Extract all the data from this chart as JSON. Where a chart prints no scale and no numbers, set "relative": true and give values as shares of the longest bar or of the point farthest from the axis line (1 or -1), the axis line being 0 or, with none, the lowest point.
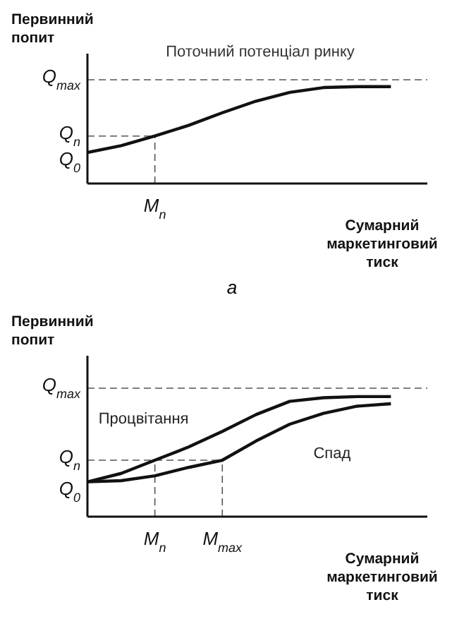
{
  "chart_data": [
    {
      "type": "line",
      "relative": true,
      "xlabel": "Сумарний маркетинговий тиск",
      "ylabel": "Первинний попит",
      "categories": [
        null,
        null,
        null,
        null,
        null,
        null,
        null,
        null,
        null,
        null
      ],
      "annotations": [
        "Поточний потенціал ринку",
        "а",
        "Q$_{0}$",
        {
          "text": "M$_{n}$",
          "y": 0.49
        }
      ],
      "series": [
        {
          "color": "#111111",
          "values": [
            0.32,
            0.39,
            0.49,
            0.6,
            0.73,
            0.85,
            0.94,
            0.99,
            1,
            1
          ]
        }
      ],
      "ref_lines": [
        {
          "axis": "y",
          "value": 1.07,
          "label": "Q$_{max}$",
          "line_style": "dashed"
        },
        {
          "axis": "y",
          "value": 0.49,
          "label": "Q$_{n}$",
          "line_style": "dashed"
        }
      ],
      "grid": false,
      "legend": false,
      "marker": "none",
      "line_style": "solid"
    },
    {
      "type": "line",
      "relative": true,
      "xlabel": "Сумарний маркетинговий тиск",
      "ylabel": "Первинний попит",
      "categories": [
        null,
        null,
        null,
        null,
        null,
        null,
        null,
        null,
        null,
        null
      ],
      "annotations": [
        "Q$_{0}$",
        {
          "text": "M$_{n}$",
          "y": 0.47
        },
        {
          "text": "M$_{max}$",
          "y": 0.47
        }
      ],
      "series": [
        {
          "name": "Процвітання",
          "color": "#111111",
          "values": [
            0.29,
            0.36,
            0.47,
            0.58,
            0.71,
            0.85,
            0.96,
            0.99,
            1,
            1
          ]
        },
        {
          "name": "Спад",
          "color": "#111111",
          "values": [
            0.29,
            0.3,
            0.34,
            0.41,
            0.47,
            0.63,
            0.77,
            0.86,
            0.92,
            0.94
          ]
        }
      ],
      "ref_lines": [
        {
          "axis": "y",
          "value": 1.07,
          "label": "Q$_{max}$",
          "line_style": "dashed"
        },
        {
          "axis": "y",
          "value": 0.47,
          "label": "Q$_{n}$",
          "line_style": "dashed"
        }
      ],
      "grid": false,
      "legend": false,
      "marker": "none",
      "line_style": "solid"
    }
  ]
}
